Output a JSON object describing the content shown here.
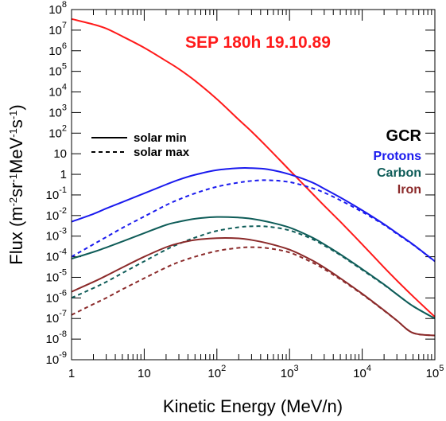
{
  "chart_data": {
    "type": "line",
    "xlabel": "Kinetic Energy (MeV/n)",
    "ylabel_parts": [
      "Flux (m",
      "-2",
      "sr",
      "-1",
      "MeV",
      "-1",
      "s",
      "-1",
      ")"
    ],
    "x_scale": "log",
    "y_scale": "log",
    "xlim": [
      1,
      100000
    ],
    "ylim": [
      1e-09,
      100000000.0
    ],
    "x_ticks": [
      {
        "base": "1",
        "exp": ""
      },
      {
        "base": "10",
        "exp": ""
      },
      {
        "base": "10",
        "exp": "2"
      },
      {
        "base": "10",
        "exp": "3"
      },
      {
        "base": "10",
        "exp": "4"
      },
      {
        "base": "10",
        "exp": "5"
      }
    ],
    "y_ticks": [
      {
        "base": "10",
        "exp": "-9"
      },
      {
        "base": "10",
        "exp": "-8"
      },
      {
        "base": "10",
        "exp": "-7"
      },
      {
        "base": "10",
        "exp": "-6"
      },
      {
        "base": "10",
        "exp": "-5"
      },
      {
        "base": "10",
        "exp": "-4"
      },
      {
        "base": "10",
        "exp": "-3"
      },
      {
        "base": "10",
        "exp": "-2"
      },
      {
        "base": "10",
        "exp": "-1"
      },
      {
        "base": "1",
        "exp": ""
      },
      {
        "base": "10",
        "exp": ""
      },
      {
        "base": "10",
        "exp": "2"
      },
      {
        "base": "10",
        "exp": "3"
      },
      {
        "base": "10",
        "exp": "4"
      },
      {
        "base": "10",
        "exp": "5"
      },
      {
        "base": "10",
        "exp": "6"
      },
      {
        "base": "10",
        "exp": "7"
      },
      {
        "base": "10",
        "exp": "8"
      }
    ],
    "legend": {
      "placement": "upper-left",
      "items": [
        {
          "label": "solar min",
          "style": "solid"
        },
        {
          "label": "solar max",
          "style": "dashed"
        }
      ]
    },
    "annotations": {
      "sep_label": "SEP 180h 19.10.89",
      "gcr_label": "GCR",
      "protons_label": "Protons",
      "carbon_label": "Carbon",
      "iron_label": "Iron"
    },
    "colors": {
      "sep": "#ff1a1a",
      "protons": "#1a1aee",
      "carbon": "#0e5c58",
      "iron": "#8b2a2a"
    },
    "series": [
      {
        "name": "SEP 180h 19.10.89",
        "color_key": "sep",
        "style": "solid",
        "x": [
          1,
          2,
          3,
          5,
          10,
          20,
          30,
          50,
          100,
          200,
          300,
          500,
          1000,
          2000,
          3000,
          5000,
          10000,
          20000,
          30000,
          50000,
          100000
        ],
        "y": [
          35000000.0,
          19000000.0,
          12000000.0,
          5000000.0,
          1400000.0,
          320000.0,
          130000.0,
          35000.0,
          4500.0,
          450,
          120,
          20,
          1.6,
          0.13,
          0.03,
          0.005,
          0.0004,
          3e-05,
          7e-06,
          1.2e-06,
          1.2e-07
        ]
      },
      {
        "name": "Protons",
        "color_key": "protons",
        "style": "solid",
        "x": [
          1,
          2,
          3,
          5,
          10,
          20,
          30,
          50,
          100,
          200,
          300,
          500,
          1000,
          2000,
          3000,
          5000,
          10000,
          20000,
          30000,
          50000,
          100000
        ],
        "y": [
          0.005,
          0.012,
          0.022,
          0.045,
          0.12,
          0.32,
          0.55,
          0.95,
          1.6,
          2.0,
          2.0,
          1.75,
          1.0,
          0.42,
          0.2,
          0.075,
          0.018,
          0.0038,
          0.0014,
          0.0004,
          6e-05
        ]
      },
      {
        "name": "Protons (solar max)",
        "color_key": "protons",
        "style": "dashed",
        "x": [
          1,
          2,
          3,
          5,
          10,
          20,
          30,
          50,
          100,
          200,
          300,
          500,
          1000,
          2000,
          3000,
          5000,
          10000,
          20000,
          30000,
          50000,
          100000
        ],
        "y": [
          0.0001,
          0.0004,
          0.0009,
          0.0025,
          0.009,
          0.032,
          0.06,
          0.12,
          0.25,
          0.4,
          0.48,
          0.52,
          0.42,
          0.22,
          0.13,
          0.055,
          0.015,
          0.0035,
          0.0013,
          0.00038,
          6e-05
        ]
      },
      {
        "name": "Carbon",
        "color_key": "carbon",
        "style": "solid",
        "x": [
          1,
          2,
          3,
          5,
          10,
          20,
          30,
          50,
          100,
          200,
          300,
          500,
          1000,
          2000,
          3000,
          5000,
          10000,
          20000,
          30000,
          50000,
          100000
        ],
        "y": [
          8e-05,
          0.00017,
          0.00028,
          0.00055,
          0.0014,
          0.0035,
          0.005,
          0.007,
          0.0085,
          0.008,
          0.007,
          0.005,
          0.0026,
          0.0009,
          0.0004,
          0.00013,
          2.5e-05,
          4.5e-06,
          1.5e-06,
          4e-07,
          1e-07
        ]
      },
      {
        "name": "Carbon (solar max)",
        "color_key": "carbon",
        "style": "dashed",
        "x": [
          1,
          2,
          3,
          5,
          10,
          20,
          30,
          50,
          100,
          200,
          300,
          500,
          1000,
          2000,
          3000,
          5000,
          10000,
          20000,
          30000,
          50000,
          100000
        ],
        "y": [
          1e-06,
          3e-06,
          6e-06,
          1.6e-05,
          6e-05,
          0.00022,
          0.00042,
          0.00085,
          0.0018,
          0.0027,
          0.003,
          0.0029,
          0.0019,
          0.00075,
          0.00035,
          0.00012,
          2.3e-05,
          4.3e-06,
          1.5e-06,
          4e-07,
          1e-07
        ]
      },
      {
        "name": "Iron",
        "color_key": "iron",
        "style": "solid",
        "x": [
          1,
          2,
          3,
          5,
          10,
          20,
          30,
          50,
          100,
          200,
          300,
          500,
          1000,
          2000,
          3000,
          5000,
          10000,
          20000,
          30000,
          50000,
          100000
        ],
        "y": [
          2e-06,
          6e-06,
          1.2e-05,
          3e-05,
          0.0001,
          0.00029,
          0.00045,
          0.00065,
          0.0008,
          0.00078,
          0.00065,
          0.00045,
          0.00022,
          7e-05,
          3e-05,
          9e-06,
          1.6e-06,
          2.5e-07,
          8e-08,
          2e-08,
          1.5e-08
        ]
      },
      {
        "name": "Iron (solar max)",
        "color_key": "iron",
        "style": "dashed",
        "x": [
          1,
          2,
          3,
          5,
          10,
          20,
          30,
          50,
          100,
          200,
          300,
          500,
          1000,
          2000,
          3000,
          5000,
          10000,
          20000,
          30000,
          50000,
          100000
        ],
        "y": [
          1.5e-07,
          5e-07,
          1e-06,
          2.6e-06,
          9e-06,
          3e-05,
          5.5e-05,
          0.0001,
          0.00019,
          0.00027,
          0.00029,
          0.00026,
          0.00016,
          5.5e-05,
          2.5e-05,
          8e-06,
          1.5e-06,
          2.4e-07,
          8e-08,
          2e-08,
          1.5e-08
        ]
      }
    ]
  }
}
